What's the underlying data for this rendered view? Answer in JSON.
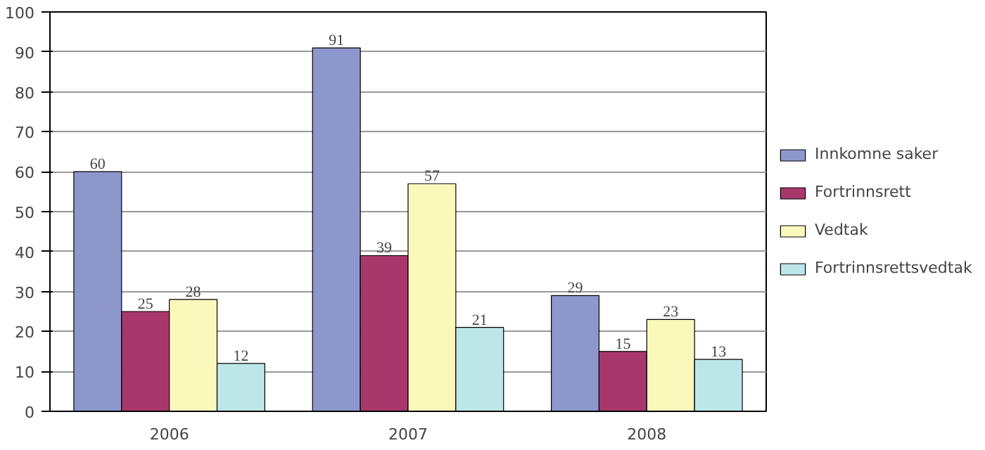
{
  "chart_data": {
    "type": "bar",
    "categories": [
      "2006",
      "2007",
      "2008"
    ],
    "series": [
      {
        "name": "Innkomne saker",
        "color": "#8e97cc",
        "values": [
          60,
          91,
          29
        ]
      },
      {
        "name": "Fortrinnsrett",
        "color": "#a8386b",
        "values": [
          25,
          39,
          15
        ]
      },
      {
        "name": "Vedtak",
        "color": "#fbf8bb",
        "values": [
          28,
          57,
          23
        ]
      },
      {
        "name": "Fortrinnsrettsvedtak",
        "color": "#bde6e8",
        "values": [
          12,
          21,
          13
        ]
      }
    ],
    "ylim": [
      0,
      100
    ],
    "yticks": [
      0,
      10,
      20,
      30,
      40,
      50,
      60,
      70,
      80,
      90,
      100
    ],
    "grid": "y",
    "legend": "right",
    "data_labels": true
  }
}
